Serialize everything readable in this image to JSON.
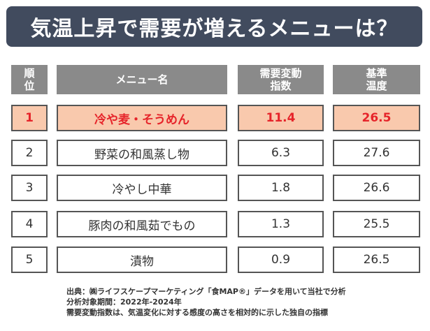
{
  "title": "気温上昇で需要が増えるメニューは？",
  "headers": {
    "rank": "順\n位",
    "menu": "メニュー名",
    "index": "需要変動\n指数",
    "temp": "基準\n温度"
  },
  "rows": [
    {
      "rank": "1",
      "menu": "冷や麦・そうめん",
      "index": "11.4",
      "temp": "26.5"
    },
    {
      "rank": "2",
      "menu": "野菜の和風蒸し物",
      "index": "6.3",
      "temp": "27.6"
    },
    {
      "rank": "3",
      "menu": "冷やし中華",
      "index": "1.8",
      "temp": "26.6"
    },
    {
      "rank": "4",
      "menu": "豚肉の和風茹でもの",
      "index": "1.3",
      "temp": "25.5"
    },
    {
      "rank": "5",
      "menu": "漬物",
      "index": "0.9",
      "temp": "26.5"
    }
  ],
  "footer": {
    "line1": "出典：㈱ライフスケープマーケティング「食MAP®」データを用いて当社で分析",
    "line2": "分析対象期間：2022年-2024年",
    "line3": "需要変動指数は、気温変化に対する感度の高さを相対的に示した独自の指標"
  },
  "colors": {
    "banner": "#414b5e",
    "header": "#8a8a8a",
    "highlight_fill": "#f9c9ad",
    "highlight_text": "#e6242a"
  }
}
